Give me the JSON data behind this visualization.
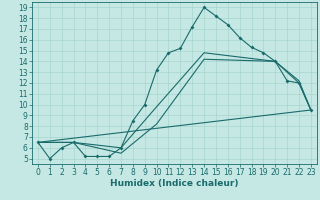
{
  "title": "",
  "xlabel": "Humidex (Indice chaleur)",
  "xlim": [
    -0.5,
    23.5
  ],
  "ylim": [
    4.5,
    19.5
  ],
  "xticks": [
    0,
    1,
    2,
    3,
    4,
    5,
    6,
    7,
    8,
    9,
    10,
    11,
    12,
    13,
    14,
    15,
    16,
    17,
    18,
    19,
    20,
    21,
    22,
    23
  ],
  "yticks": [
    5,
    6,
    7,
    8,
    9,
    10,
    11,
    12,
    13,
    14,
    15,
    16,
    17,
    18,
    19
  ],
  "bg_color": "#c5e8e4",
  "line_color": "#1a6b6b",
  "grid_color": "#a8d4ce",
  "series1_x": [
    0,
    1,
    2,
    3,
    4,
    5,
    6,
    7,
    8,
    9,
    10,
    11,
    12,
    13,
    14,
    15,
    16,
    17,
    18,
    19,
    20,
    21,
    22,
    23
  ],
  "series1_y": [
    6.5,
    5.0,
    6.0,
    6.5,
    5.2,
    5.2,
    5.2,
    6.0,
    8.5,
    10.0,
    13.2,
    14.8,
    15.2,
    17.2,
    19.0,
    18.2,
    17.4,
    16.2,
    15.3,
    14.8,
    14.0,
    12.2,
    12.0,
    9.5
  ],
  "series2_x": [
    0,
    3,
    7,
    10,
    14,
    20,
    22,
    23
  ],
  "series2_y": [
    6.5,
    6.5,
    6.0,
    9.8,
    14.8,
    14.0,
    12.2,
    9.5
  ],
  "series3_x": [
    0,
    3,
    7,
    10,
    14,
    20,
    22,
    23
  ],
  "series3_y": [
    6.5,
    6.5,
    5.5,
    8.2,
    14.2,
    14.0,
    12.0,
    9.5
  ],
  "series4_x": [
    0,
    23
  ],
  "series4_y": [
    6.5,
    9.5
  ],
  "tick_fontsize": 5.5,
  "label_fontsize": 6.5
}
